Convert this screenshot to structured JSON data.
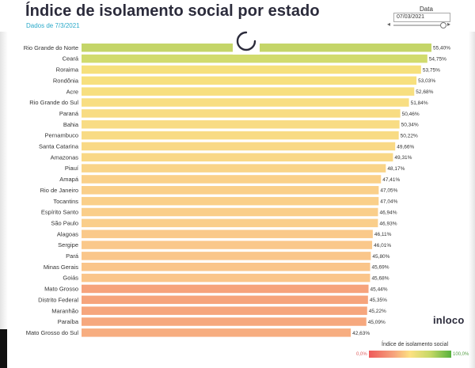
{
  "header": {
    "title": "Índice de isolamento social por estado",
    "subtitle": "Dados de 7/3/2021"
  },
  "date_filter": {
    "label": "Data",
    "value": "07/03/2021"
  },
  "logo": {
    "text": "inloco"
  },
  "legend": {
    "title": "Índice de isolamento social",
    "min_label": "0,0%",
    "max_label": "100,0%"
  },
  "colors": {
    "title": "#2b2b3b",
    "subtitle": "#2aa9c9",
    "legend_low": "#ee5a5a",
    "legend_mid_low": "#f6a37c",
    "legend_mid": "#fde182",
    "legend_high": "#c4d865",
    "legend_top": "#56b13c"
  },
  "chart_data": {
    "type": "bar",
    "orientation": "horizontal",
    "title": "Índice de isolamento social por estado",
    "xlim": [
      0,
      100
    ],
    "grid": false,
    "categories": [
      "Rio Grande do Norte",
      "Ceará",
      "Roraima",
      "Rondônia",
      "Acre",
      "Rio Grande do Sul",
      "Paraná",
      "Bahia",
      "Pernambuco",
      "Santa Catarina",
      "Amazonas",
      "Piauí",
      "Amapá",
      "Rio de Janeiro",
      "Tocantins",
      "Espírito Santo",
      "São Paulo",
      "Alagoas",
      "Sergipe",
      "Pará",
      "Minas Gerais",
      "Goiás",
      "Mato Grosso",
      "Distrito Federal",
      "Maranhão",
      "Paraíba",
      "Mato Grosso do Sul"
    ],
    "values": [
      55.4,
      54.75,
      53.75,
      53.03,
      52.68,
      51.84,
      50.46,
      50.34,
      50.22,
      49.66,
      49.31,
      48.17,
      47.41,
      47.05,
      47.04,
      46.94,
      46.93,
      46.11,
      46.01,
      45.8,
      45.69,
      45.68,
      45.44,
      45.35,
      45.22,
      45.09,
      42.63
    ],
    "value_labels": [
      "55,40%",
      "54,75%",
      "53,75%",
      "53,03%",
      "52,68%",
      "51,84%",
      "50,46%",
      "50,34%",
      "50,22%",
      "49,66%",
      "49,31%",
      "48,17%",
      "47,41%",
      "47,05%",
      "47,04%",
      "46,94%",
      "46,93%",
      "46,11%",
      "46,01%",
      "45,80%",
      "45,69%",
      "45,68%",
      "45,44%",
      "45,35%",
      "45,22%",
      "45,09%",
      "42,63%"
    ],
    "bar_colors": [
      "#c4d568",
      "#d1db6d",
      "#f6e07c",
      "#f7e07e",
      "#f7df80",
      "#f8de82",
      "#f8dc83",
      "#f8dc84",
      "#f8db84",
      "#f9d985",
      "#f9d886",
      "#f9d488",
      "#fad089",
      "#facf89",
      "#facf89",
      "#face8a",
      "#face8a",
      "#fac98a",
      "#fac88a",
      "#fac68a",
      "#fac58a",
      "#fac58a",
      "#f6a37c",
      "#f6a47c",
      "#f6a67d",
      "#f6a87e",
      "#f7ad80"
    ]
  }
}
